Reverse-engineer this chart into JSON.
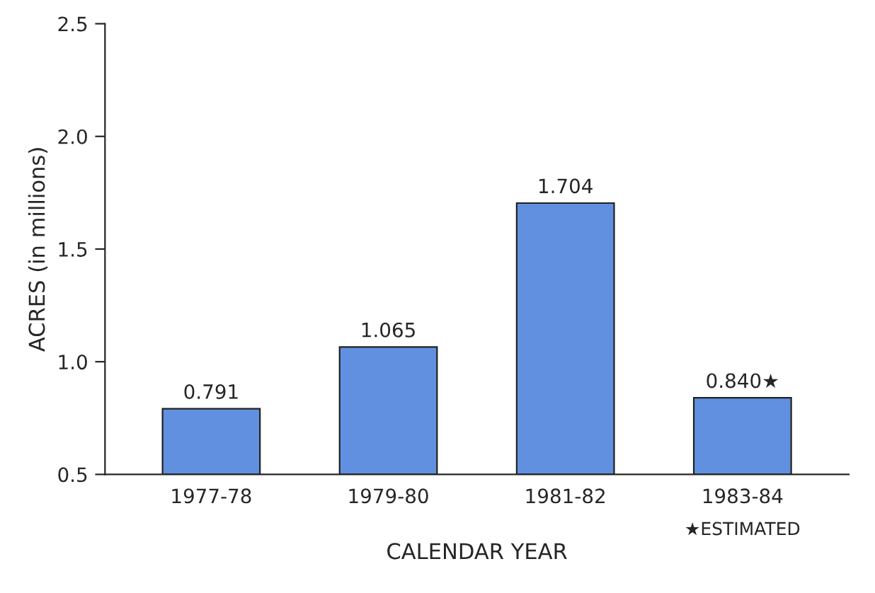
{
  "chart_data": {
    "type": "bar",
    "xlabel": "CALENDAR YEAR",
    "ylabel": "ACRES (in millions)",
    "categories": [
      "1977-78",
      "1979-80",
      "1981-82",
      "1983-84"
    ],
    "values": [
      0.791,
      1.065,
      1.704,
      0.84
    ],
    "value_labels": [
      "0.791",
      "1.065",
      "1.704",
      "0.840★"
    ],
    "color": "#6190e0",
    "ylim": [
      0.5,
      2.5
    ],
    "yticks": [
      {
        "value": 0.5,
        "label": "0.5"
      },
      {
        "value": 1.0,
        "label": "1.0"
      },
      {
        "value": 1.5,
        "label": "1.5"
      },
      {
        "value": 2.0,
        "label": "2.0"
      },
      {
        "value": 2.5,
        "label": "2.5"
      }
    ],
    "annotations": [
      "★ESTIMATED"
    ],
    "grid": false
  }
}
